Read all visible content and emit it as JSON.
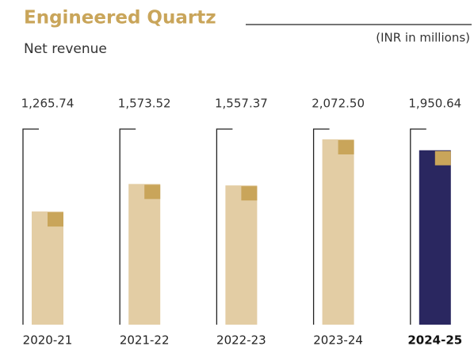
{
  "chart_data": {
    "type": "bar",
    "title": "Engineered Quartz",
    "subtitle": "Net revenue",
    "unit_note": "(INR in millions)",
    "categories": [
      "2020-21",
      "2021-22",
      "2022-23",
      "2023-24",
      "2024-25"
    ],
    "values": [
      1265.74,
      1573.52,
      1557.37,
      2072.5,
      1950.64
    ],
    "value_labels": [
      "1,265.74",
      "1,573.52",
      "1,557.37",
      "2,072.50",
      "1,950.64"
    ],
    "colors": [
      "#e3cda4",
      "#e3cda4",
      "#e3cda4",
      "#e3cda4",
      "#2a2760"
    ],
    "accent_color": "#c9a55a"
  }
}
